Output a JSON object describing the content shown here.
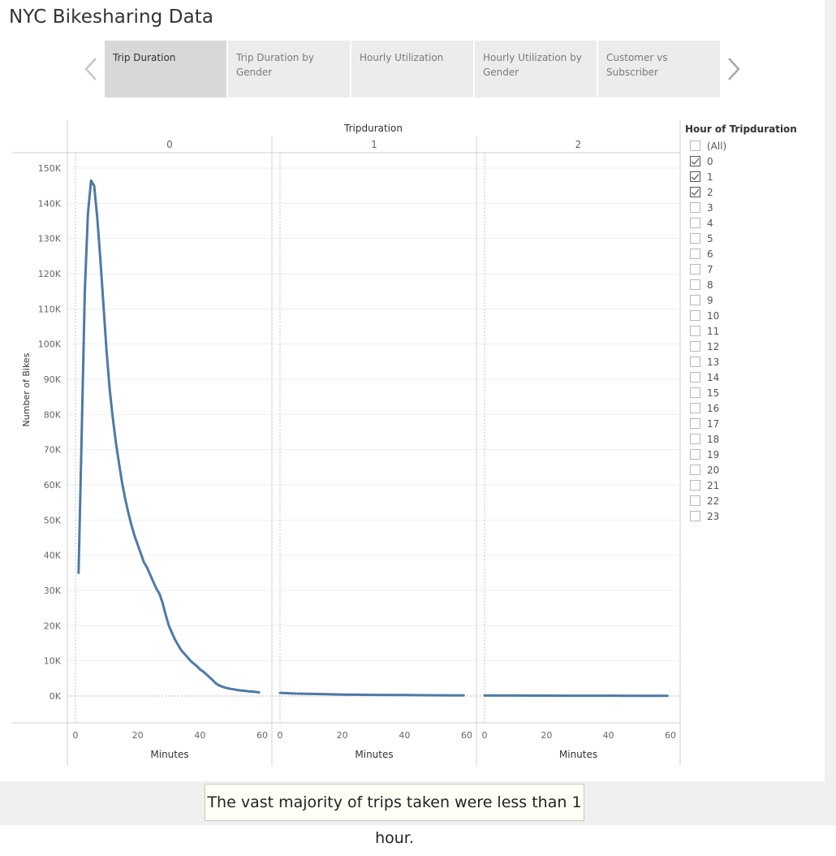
{
  "title": "NYC Bikesharing Data",
  "tabs": [
    {
      "label": "Trip Duration",
      "active": true
    },
    {
      "label": "Trip Duration by Gender",
      "active": false
    },
    {
      "label": "Hourly Utilization",
      "active": false
    },
    {
      "label": "Hourly Utilization by Gender",
      "active": false
    },
    {
      "label": "Customer vs Subscriber",
      "active": false
    }
  ],
  "nav": {
    "prev_icon": "chevron-left-icon",
    "next_icon": "chevron-right-icon"
  },
  "filter": {
    "title": "Hour of Tripduration",
    "items": [
      {
        "label": "(All)",
        "checked": false
      },
      {
        "label": "0",
        "checked": true
      },
      {
        "label": "1",
        "checked": true
      },
      {
        "label": "2",
        "checked": true
      },
      {
        "label": "3",
        "checked": false
      },
      {
        "label": "4",
        "checked": false
      },
      {
        "label": "5",
        "checked": false
      },
      {
        "label": "6",
        "checked": false
      },
      {
        "label": "7",
        "checked": false
      },
      {
        "label": "8",
        "checked": false
      },
      {
        "label": "9",
        "checked": false
      },
      {
        "label": "10",
        "checked": false
      },
      {
        "label": "11",
        "checked": false
      },
      {
        "label": "12",
        "checked": false
      },
      {
        "label": "13",
        "checked": false
      },
      {
        "label": "14",
        "checked": false
      },
      {
        "label": "15",
        "checked": false
      },
      {
        "label": "16",
        "checked": false
      },
      {
        "label": "17",
        "checked": false
      },
      {
        "label": "18",
        "checked": false
      },
      {
        "label": "19",
        "checked": false
      },
      {
        "label": "20",
        "checked": false
      },
      {
        "label": "21",
        "checked": false
      },
      {
        "label": "22",
        "checked": false
      },
      {
        "label": "23",
        "checked": false
      }
    ]
  },
  "caption": "The vast majority of trips taken were less than 1 hour.",
  "colors": {
    "line": "#4e79a7",
    "grid": "#eeeeee",
    "axis": "#d0d0d0"
  },
  "chart_data": {
    "type": "line",
    "title": "Tripduration",
    "xlabel": "Minutes",
    "ylabel": "Number of Bikes",
    "xlim": [
      0,
      60
    ],
    "ylim": [
      0,
      150000
    ],
    "xticks": [
      0,
      20,
      40,
      60
    ],
    "xtick_labels_first_panel": [
      "0",
      "20",
      "40",
      "60"
    ],
    "yticks": [
      0,
      10000,
      20000,
      30000,
      40000,
      50000,
      60000,
      70000,
      80000,
      90000,
      100000,
      110000,
      120000,
      130000,
      140000,
      150000
    ],
    "ytick_labels": [
      "0K",
      "10K",
      "20K",
      "30K",
      "40K",
      "50K",
      "60K",
      "70K",
      "80K",
      "90K",
      "100K",
      "110K",
      "120K",
      "130K",
      "140K",
      "150K"
    ],
    "grid": true,
    "panels": [
      {
        "label": "0",
        "x": [
          1,
          2,
          3,
          4,
          5,
          6,
          7,
          8,
          9,
          10,
          11,
          12,
          13,
          14,
          15,
          16,
          17,
          18,
          19,
          20,
          21,
          22,
          23,
          24,
          25,
          26,
          27,
          28,
          29,
          30,
          31,
          32,
          33,
          34,
          35,
          36,
          37,
          38,
          39,
          40,
          41,
          42,
          43,
          44,
          45,
          46,
          47,
          48,
          49,
          50,
          51,
          52,
          53,
          54,
          55,
          56,
          57,
          58,
          59
        ],
        "y": [
          35000,
          75000,
          115000,
          137000,
          146500,
          145000,
          136000,
          124000,
          111000,
          98000,
          87000,
          79000,
          72000,
          66000,
          60500,
          56000,
          52000,
          48500,
          45500,
          43000,
          40500,
          38000,
          36500,
          34500,
          32500,
          30500,
          29000,
          26500,
          23000,
          20000,
          18000,
          16000,
          14500,
          13000,
          12000,
          11000,
          10000,
          9200,
          8500,
          7600,
          7000,
          6200,
          5400,
          4600,
          3700,
          3100,
          2700,
          2400,
          2200,
          2000,
          1900,
          1700,
          1600,
          1500,
          1400,
          1300,
          1250,
          1150,
          1050
        ]
      },
      {
        "label": "1",
        "x": [
          0,
          5,
          10,
          15,
          20,
          25,
          30,
          35,
          40,
          45,
          50,
          55,
          59
        ],
        "y": [
          900,
          700,
          600,
          500,
          420,
          380,
          330,
          300,
          270,
          240,
          210,
          190,
          170
        ]
      },
      {
        "label": "2",
        "x": [
          0,
          5,
          10,
          15,
          20,
          25,
          30,
          35,
          40,
          45,
          50,
          55,
          59
        ],
        "y": [
          150,
          140,
          130,
          120,
          110,
          100,
          95,
          90,
          85,
          80,
          75,
          70,
          65
        ]
      }
    ]
  }
}
